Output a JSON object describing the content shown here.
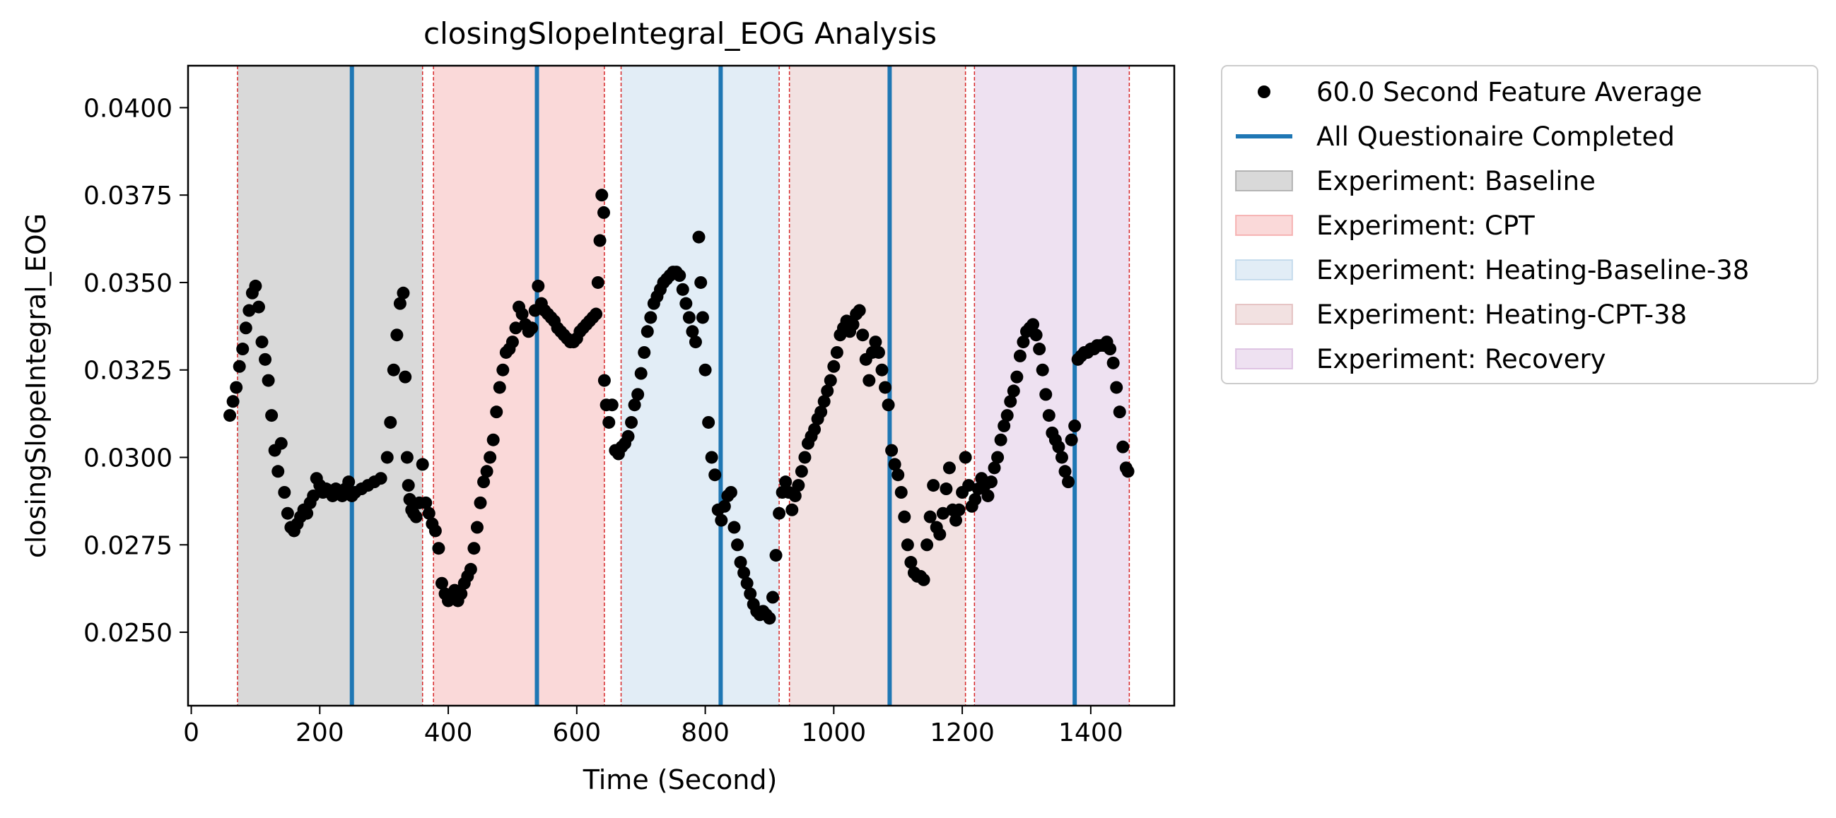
{
  "chart_data": {
    "type": "scatter",
    "title": "closingSlopeIntegral_EOG Analysis",
    "xlabel": "Time (Second)",
    "ylabel": "closingSlopeIntegral_EOG",
    "xlim": [
      -5,
      1530
    ],
    "ylim": [
      0.0229,
      0.0412
    ],
    "x_ticks": [
      0,
      200,
      400,
      600,
      800,
      1000,
      1200,
      1400
    ],
    "y_ticks": [
      0.025,
      0.0275,
      0.03,
      0.0325,
      0.035,
      0.0375,
      0.04
    ],
    "x_tick_labels": [
      "0",
      "200",
      "400",
      "600",
      "800",
      "1000",
      "1200",
      "1400"
    ],
    "y_tick_labels": [
      "0.0250",
      "0.0275",
      "0.0300",
      "0.0325",
      "0.0350",
      "0.0375",
      "0.0400"
    ],
    "grid": false,
    "legend_placement": "outside upper right",
    "colors": {
      "points": "#000000",
      "questionnaire": "#1f77b4",
      "boundary": "#d62728"
    },
    "legend": [
      {
        "kind": "marker",
        "label": "60.0 Second Feature Average",
        "color": "#000000"
      },
      {
        "kind": "line",
        "label": "All Questionaire Completed",
        "color": "#1f77b4"
      },
      {
        "kind": "patch",
        "label": "Experiment: Baseline",
        "color": "#808080"
      },
      {
        "kind": "patch",
        "label": "Experiment: CPT",
        "color": "#f08080"
      },
      {
        "kind": "patch",
        "label": "Experiment: Heating-Baseline-38",
        "color": "#9ec3e0"
      },
      {
        "kind": "patch",
        "label": "Experiment: Heating-CPT-38",
        "color": "#d49a9a"
      },
      {
        "kind": "patch",
        "label": "Experiment: Recovery",
        "color": "#c79bcf"
      }
    ],
    "experiments": [
      {
        "name": "Baseline",
        "start": 72,
        "end": 360,
        "color": "#808080"
      },
      {
        "name": "CPT",
        "start": 377,
        "end": 643,
        "color": "#f08080"
      },
      {
        "name": "Heating-Baseline-38",
        "start": 669,
        "end": 915,
        "color": "#9ec3e0"
      },
      {
        "name": "Heating-CPT-38",
        "start": 931,
        "end": 1205,
        "color": "#d49a9a"
      },
      {
        "name": "Recovery",
        "start": 1219,
        "end": 1460,
        "color": "#c79bcf"
      }
    ],
    "questionnaire_completed": [
      250,
      538,
      824,
      1087,
      1375
    ],
    "series": [
      {
        "name": "60.0 Second Feature Average",
        "points": [
          [
            60,
            0.0312
          ],
          [
            65,
            0.0316
          ],
          [
            70,
            0.032
          ],
          [
            75,
            0.0326
          ],
          [
            80,
            0.0331
          ],
          [
            85,
            0.0337
          ],
          [
            90,
            0.0342
          ],
          [
            95,
            0.0347
          ],
          [
            100,
            0.0349
          ],
          [
            105,
            0.0343
          ],
          [
            110,
            0.0333
          ],
          [
            115,
            0.0328
          ],
          [
            120,
            0.0322
          ],
          [
            125,
            0.0312
          ],
          [
            130,
            0.0302
          ],
          [
            135,
            0.0296
          ],
          [
            140,
            0.0304
          ],
          [
            145,
            0.029
          ],
          [
            150,
            0.0284
          ],
          [
            155,
            0.028
          ],
          [
            160,
            0.0279
          ],
          [
            165,
            0.0281
          ],
          [
            170,
            0.0283
          ],
          [
            175,
            0.0285
          ],
          [
            180,
            0.0284
          ],
          [
            185,
            0.0287
          ],
          [
            190,
            0.0289
          ],
          [
            195,
            0.0294
          ],
          [
            200,
            0.0292
          ],
          [
            205,
            0.029
          ],
          [
            210,
            0.0291
          ],
          [
            215,
            0.029
          ],
          [
            220,
            0.0289
          ],
          [
            225,
            0.0291
          ],
          [
            230,
            0.029
          ],
          [
            235,
            0.0289
          ],
          [
            240,
            0.0291
          ],
          [
            245,
            0.0293
          ],
          [
            250,
            0.0289
          ],
          [
            255,
            0.029
          ],
          [
            265,
            0.0291
          ],
          [
            275,
            0.0292
          ],
          [
            285,
            0.0293
          ],
          [
            295,
            0.0294
          ],
          [
            305,
            0.03
          ],
          [
            310,
            0.031
          ],
          [
            315,
            0.0325
          ],
          [
            320,
            0.0335
          ],
          [
            325,
            0.0344
          ],
          [
            330,
            0.0347
          ],
          [
            333,
            0.0323
          ],
          [
            336,
            0.03
          ],
          [
            338,
            0.0292
          ],
          [
            340,
            0.0288
          ],
          [
            343,
            0.0285
          ],
          [
            346,
            0.0284
          ],
          [
            350,
            0.0283
          ],
          [
            355,
            0.0287
          ],
          [
            360,
            0.0298
          ],
          [
            365,
            0.0287
          ],
          [
            370,
            0.0284
          ],
          [
            375,
            0.0281
          ],
          [
            380,
            0.0279
          ],
          [
            385,
            0.0274
          ],
          [
            390,
            0.0264
          ],
          [
            395,
            0.0261
          ],
          [
            400,
            0.0259
          ],
          [
            405,
            0.026
          ],
          [
            410,
            0.0262
          ],
          [
            415,
            0.0259
          ],
          [
            420,
            0.0261
          ],
          [
            425,
            0.0264
          ],
          [
            430,
            0.0266
          ],
          [
            435,
            0.0268
          ],
          [
            440,
            0.0274
          ],
          [
            445,
            0.028
          ],
          [
            450,
            0.0287
          ],
          [
            455,
            0.0293
          ],
          [
            460,
            0.0296
          ],
          [
            465,
            0.03
          ],
          [
            470,
            0.0305
          ],
          [
            475,
            0.0313
          ],
          [
            480,
            0.032
          ],
          [
            485,
            0.0325
          ],
          [
            490,
            0.033
          ],
          [
            495,
            0.0331
          ],
          [
            500,
            0.0333
          ],
          [
            505,
            0.0337
          ],
          [
            510,
            0.0343
          ],
          [
            515,
            0.0341
          ],
          [
            520,
            0.0338
          ],
          [
            525,
            0.0336
          ],
          [
            530,
            0.0337
          ],
          [
            535,
            0.0342
          ],
          [
            540,
            0.0349
          ],
          [
            545,
            0.0344
          ],
          [
            550,
            0.0342
          ],
          [
            555,
            0.0341
          ],
          [
            560,
            0.034
          ],
          [
            565,
            0.0339
          ],
          [
            570,
            0.0337
          ],
          [
            575,
            0.0336
          ],
          [
            580,
            0.0335
          ],
          [
            585,
            0.0334
          ],
          [
            590,
            0.0333
          ],
          [
            595,
            0.0333
          ],
          [
            600,
            0.0334
          ],
          [
            605,
            0.0336
          ],
          [
            610,
            0.0337
          ],
          [
            615,
            0.0338
          ],
          [
            620,
            0.0339
          ],
          [
            625,
            0.034
          ],
          [
            630,
            0.0341
          ],
          [
            633,
            0.035
          ],
          [
            636,
            0.0362
          ],
          [
            639,
            0.0375
          ],
          [
            642,
            0.037
          ],
          [
            643,
            0.0322
          ],
          [
            646,
            0.0315
          ],
          [
            650,
            0.031
          ],
          [
            655,
            0.0315
          ],
          [
            660,
            0.0302
          ],
          [
            665,
            0.0301
          ],
          [
            670,
            0.0303
          ],
          [
            675,
            0.0304
          ],
          [
            680,
            0.0306
          ],
          [
            685,
            0.031
          ],
          [
            690,
            0.0315
          ],
          [
            695,
            0.0318
          ],
          [
            700,
            0.0324
          ],
          [
            705,
            0.033
          ],
          [
            710,
            0.0336
          ],
          [
            715,
            0.034
          ],
          [
            720,
            0.0344
          ],
          [
            725,
            0.0346
          ],
          [
            730,
            0.0348
          ],
          [
            735,
            0.035
          ],
          [
            740,
            0.0351
          ],
          [
            745,
            0.0352
          ],
          [
            750,
            0.0353
          ],
          [
            755,
            0.0353
          ],
          [
            760,
            0.0352
          ],
          [
            765,
            0.0348
          ],
          [
            770,
            0.0344
          ],
          [
            775,
            0.034
          ],
          [
            780,
            0.0336
          ],
          [
            785,
            0.0333
          ],
          [
            790,
            0.0363
          ],
          [
            793,
            0.035
          ],
          [
            796,
            0.034
          ],
          [
            800,
            0.0325
          ],
          [
            805,
            0.031
          ],
          [
            810,
            0.03
          ],
          [
            815,
            0.0295
          ],
          [
            820,
            0.0285
          ],
          [
            825,
            0.0282
          ],
          [
            830,
            0.0286
          ],
          [
            835,
            0.0289
          ],
          [
            840,
            0.029
          ],
          [
            845,
            0.028
          ],
          [
            850,
            0.0275
          ],
          [
            855,
            0.027
          ],
          [
            860,
            0.0267
          ],
          [
            865,
            0.0264
          ],
          [
            870,
            0.0261
          ],
          [
            875,
            0.0258
          ],
          [
            880,
            0.0256
          ],
          [
            885,
            0.0255
          ],
          [
            890,
            0.0256
          ],
          [
            895,
            0.0255
          ],
          [
            900,
            0.0254
          ],
          [
            905,
            0.026
          ],
          [
            910,
            0.0272
          ],
          [
            915,
            0.0284
          ],
          [
            920,
            0.029
          ],
          [
            925,
            0.0293
          ],
          [
            930,
            0.029
          ],
          [
            935,
            0.0285
          ],
          [
            940,
            0.0289
          ],
          [
            945,
            0.0292
          ],
          [
            950,
            0.0296
          ],
          [
            955,
            0.03
          ],
          [
            960,
            0.0304
          ],
          [
            965,
            0.0306
          ],
          [
            970,
            0.0308
          ],
          [
            975,
            0.0311
          ],
          [
            980,
            0.0313
          ],
          [
            985,
            0.0316
          ],
          [
            990,
            0.0319
          ],
          [
            995,
            0.0322
          ],
          [
            1000,
            0.0326
          ],
          [
            1005,
            0.033
          ],
          [
            1010,
            0.0335
          ],
          [
            1015,
            0.0337
          ],
          [
            1020,
            0.0339
          ],
          [
            1025,
            0.0336
          ],
          [
            1030,
            0.0338
          ],
          [
            1035,
            0.0341
          ],
          [
            1040,
            0.0342
          ],
          [
            1045,
            0.0335
          ],
          [
            1050,
            0.0328
          ],
          [
            1055,
            0.0322
          ],
          [
            1060,
            0.033
          ],
          [
            1065,
            0.0333
          ],
          [
            1070,
            0.033
          ],
          [
            1075,
            0.0325
          ],
          [
            1080,
            0.032
          ],
          [
            1085,
            0.0315
          ],
          [
            1090,
            0.0302
          ],
          [
            1095,
            0.0298
          ],
          [
            1100,
            0.0295
          ],
          [
            1105,
            0.029
          ],
          [
            1110,
            0.0283
          ],
          [
            1115,
            0.0275
          ],
          [
            1120,
            0.027
          ],
          [
            1125,
            0.0267
          ],
          [
            1130,
            0.0266
          ],
          [
            1135,
            0.0266
          ],
          [
            1140,
            0.0265
          ],
          [
            1145,
            0.0275
          ],
          [
            1150,
            0.0283
          ],
          [
            1155,
            0.0292
          ],
          [
            1160,
            0.028
          ],
          [
            1165,
            0.0278
          ],
          [
            1170,
            0.0284
          ],
          [
            1175,
            0.0291
          ],
          [
            1180,
            0.0297
          ],
          [
            1185,
            0.0285
          ],
          [
            1190,
            0.0282
          ],
          [
            1195,
            0.0285
          ],
          [
            1200,
            0.029
          ],
          [
            1205,
            0.03
          ],
          [
            1210,
            0.0292
          ],
          [
            1215,
            0.0286
          ],
          [
            1220,
            0.0288
          ],
          [
            1225,
            0.0291
          ],
          [
            1230,
            0.0294
          ],
          [
            1235,
            0.0292
          ],
          [
            1240,
            0.0289
          ],
          [
            1245,
            0.0293
          ],
          [
            1250,
            0.0297
          ],
          [
            1255,
            0.03
          ],
          [
            1260,
            0.0305
          ],
          [
            1265,
            0.0309
          ],
          [
            1270,
            0.0312
          ],
          [
            1275,
            0.0316
          ],
          [
            1280,
            0.0319
          ],
          [
            1285,
            0.0323
          ],
          [
            1290,
            0.0329
          ],
          [
            1295,
            0.0333
          ],
          [
            1300,
            0.0336
          ],
          [
            1305,
            0.0337
          ],
          [
            1310,
            0.0338
          ],
          [
            1315,
            0.0335
          ],
          [
            1320,
            0.0331
          ],
          [
            1325,
            0.0325
          ],
          [
            1330,
            0.0318
          ],
          [
            1335,
            0.0312
          ],
          [
            1340,
            0.0307
          ],
          [
            1345,
            0.0305
          ],
          [
            1350,
            0.0303
          ],
          [
            1355,
            0.03
          ],
          [
            1360,
            0.0296
          ],
          [
            1365,
            0.0293
          ],
          [
            1370,
            0.0305
          ],
          [
            1375,
            0.0309
          ],
          [
            1380,
            0.0328
          ],
          [
            1385,
            0.0329
          ],
          [
            1390,
            0.033
          ],
          [
            1395,
            0.033
          ],
          [
            1400,
            0.0331
          ],
          [
            1405,
            0.0331
          ],
          [
            1410,
            0.0332
          ],
          [
            1415,
            0.0332
          ],
          [
            1420,
            0.0332
          ],
          [
            1425,
            0.0333
          ],
          [
            1430,
            0.0331
          ],
          [
            1435,
            0.0327
          ],
          [
            1440,
            0.032
          ],
          [
            1445,
            0.0313
          ],
          [
            1450,
            0.0303
          ],
          [
            1455,
            0.0297
          ],
          [
            1458,
            0.0296
          ]
        ]
      }
    ]
  }
}
